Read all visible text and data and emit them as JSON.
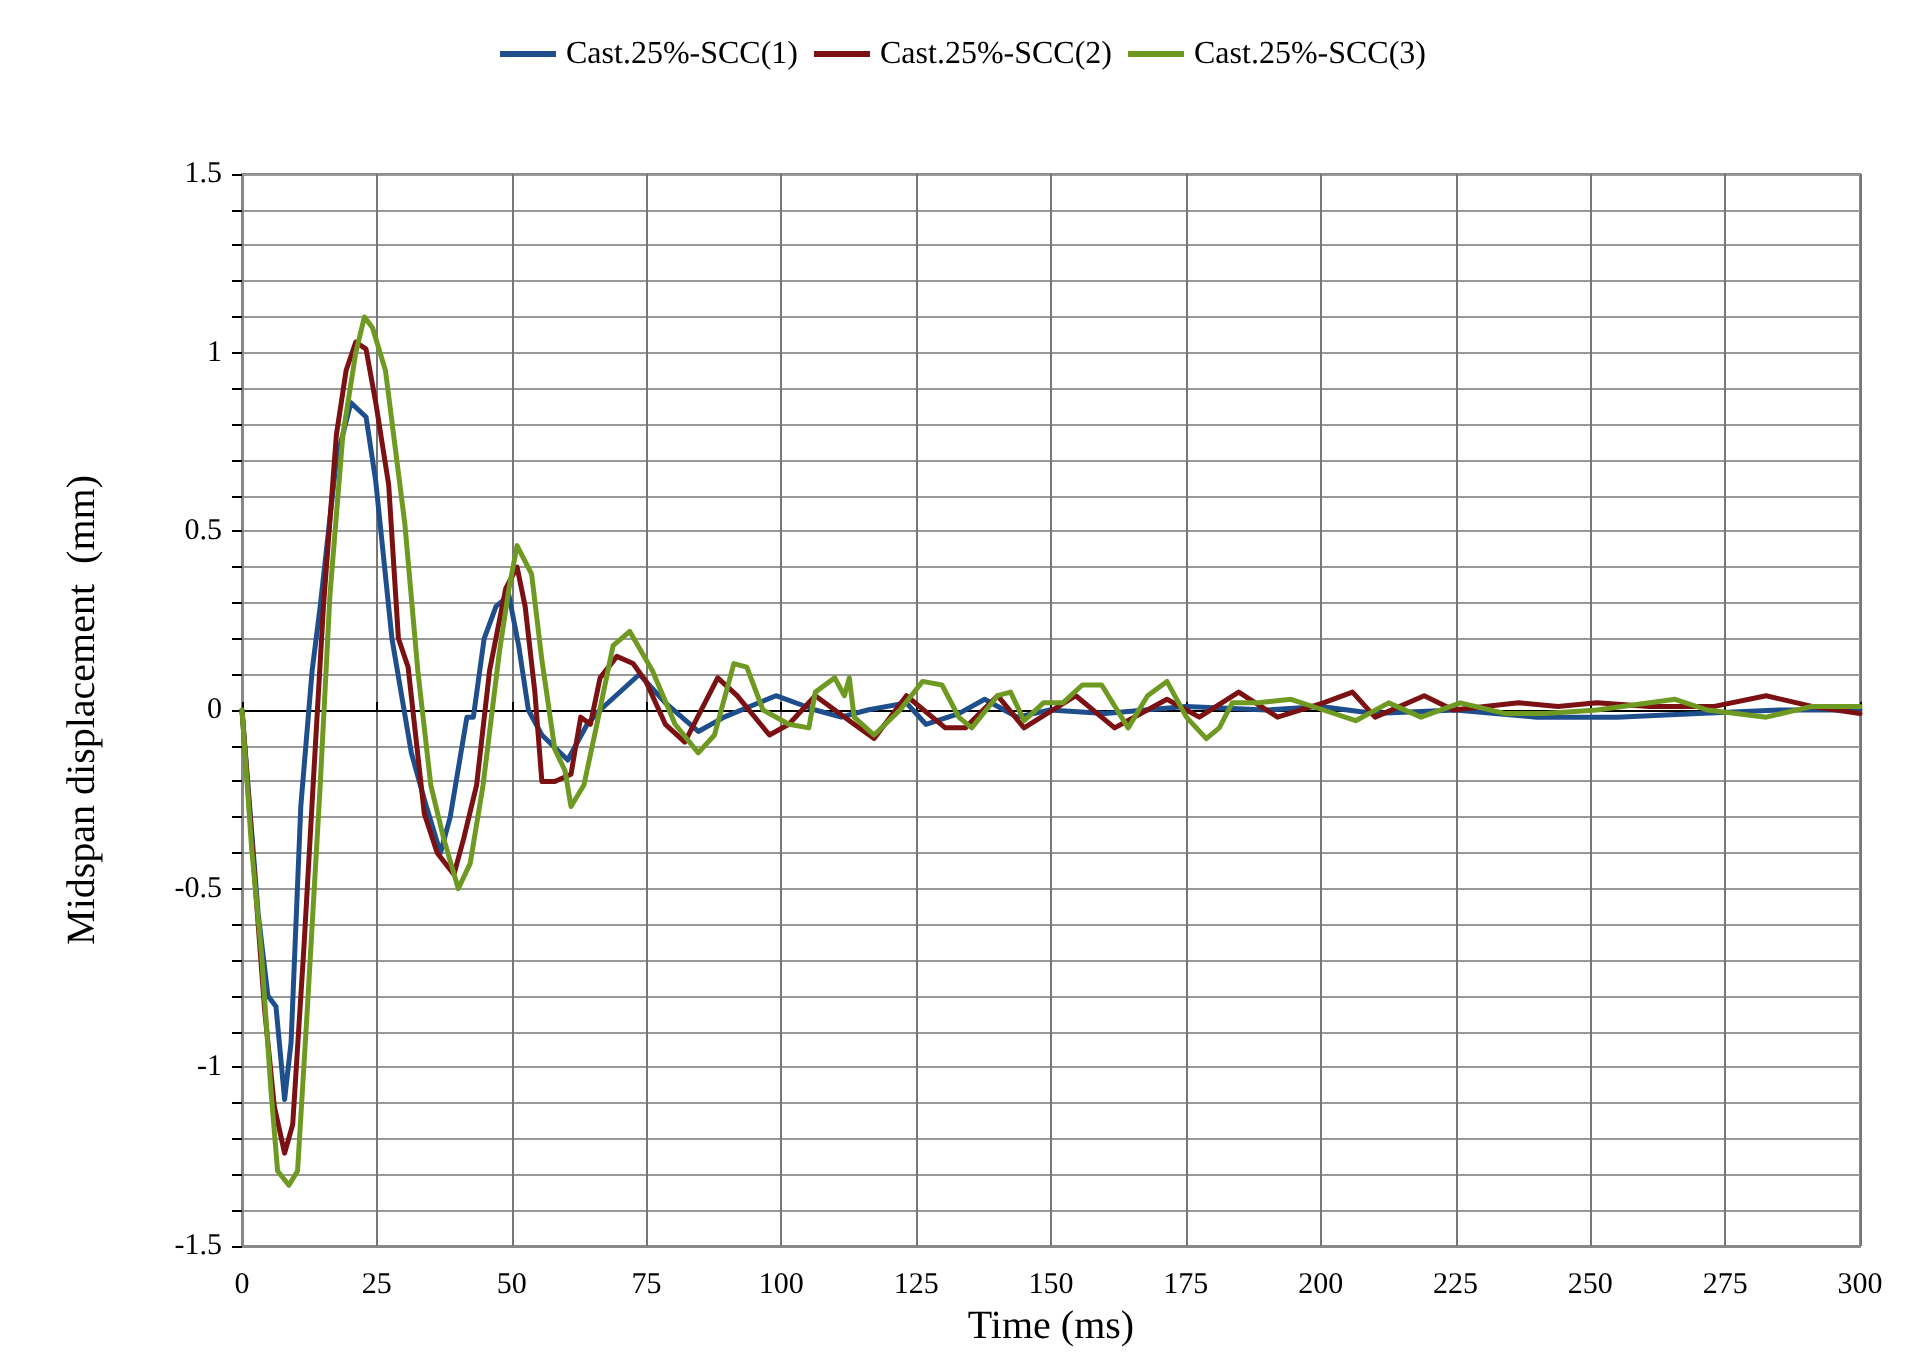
{
  "chart_data": {
    "type": "line",
    "xlabel": "Time (ms)",
    "ylabel": "Midspan displacement  (mm)",
    "xlim": [
      0,
      300
    ],
    "xticks": [
      0,
      25,
      50,
      75,
      100,
      125,
      150,
      175,
      200,
      225,
      250,
      275,
      300
    ],
    "ylim": [
      -1.5,
      1.5
    ],
    "yticks": [
      -1.5,
      {
        "value": -1.4,
        "label": null
      },
      {
        "value": -1.3,
        "label": null
      },
      {
        "value": -1.2,
        "label": null
      },
      {
        "value": -1.1,
        "label": null
      },
      -1,
      {
        "value": -0.9,
        "label": null
      },
      {
        "value": -0.8,
        "label": null
      },
      {
        "value": -0.7,
        "label": null
      },
      {
        "value": -0.6,
        "label": null
      },
      -0.5,
      {
        "value": -0.4,
        "label": null
      },
      {
        "value": -0.3,
        "label": null
      },
      {
        "value": -0.2,
        "label": null
      },
      {
        "value": -0.1,
        "label": null
      },
      0,
      {
        "value": 0.1,
        "label": null
      },
      {
        "value": 0.2,
        "label": null
      },
      {
        "value": 0.3,
        "label": null
      },
      {
        "value": 0.4,
        "label": null
      },
      0.5,
      {
        "value": 0.6,
        "label": null
      },
      {
        "value": 0.7,
        "label": null
      },
      {
        "value": 0.8,
        "label": null
      },
      {
        "value": 0.9,
        "label": null
      },
      1,
      {
        "value": 1.1,
        "label": null
      },
      {
        "value": 1.2,
        "label": null
      },
      {
        "value": 1.3,
        "label": null
      },
      {
        "value": 1.4,
        "label": null
      },
      1.5
    ],
    "grid": true,
    "legend": "top",
    "marker": "none",
    "line_style": "solid",
    "series": [
      {
        "name": "Cast.25%-SCC(1)",
        "color": "#1f4e8c",
        "x": [
          0,
          3,
          4.8,
          6.3,
          7.9,
          9.1,
          10.9,
          13,
          14.5,
          17.5,
          20.2,
          23,
          24.8,
          27.8,
          31.4,
          33.8,
          36.8,
          38.6,
          41.7,
          42.9,
          44.9,
          47.1,
          49.5,
          51.3,
          53.1,
          55.6,
          60.4,
          64,
          66.4,
          73.7,
          78.5,
          84.6,
          89.4,
          99,
          106.3,
          111.1,
          116,
          123.2,
          126.8,
          132.9,
          137.7,
          143.7,
          149.8,
          160,
          175,
          190,
          200,
          210,
          225,
          240,
          255,
          270,
          285,
          300
        ],
        "values": [
          0,
          -0.57,
          -0.8,
          -0.83,
          -1.09,
          -0.93,
          -0.27,
          0.11,
          0.29,
          0.7,
          0.86,
          0.82,
          0.64,
          0.2,
          -0.12,
          -0.25,
          -0.4,
          -0.3,
          -0.02,
          -0.02,
          0.2,
          0.29,
          0.32,
          0.18,
          0,
          -0.07,
          -0.14,
          -0.04,
          0,
          0.1,
          0.02,
          -0.06,
          -0.02,
          0.04,
          0,
          -0.02,
          0,
          0.02,
          -0.04,
          -0.01,
          0.03,
          -0.02,
          0,
          -0.01,
          0.01,
          0,
          0.01,
          -0.01,
          0,
          -0.02,
          -0.02,
          -0.01,
          0,
          0
        ]
      },
      {
        "name": "Cast.25%-SCC(2)",
        "color": "#7b1113",
        "x": [
          0,
          2.4,
          4.2,
          6,
          7.9,
          9.4,
          11.5,
          13.3,
          15.1,
          17.5,
          19.3,
          21.1,
          23,
          24.8,
          27.2,
          29,
          30.8,
          33.8,
          36.2,
          39.3,
          41.1,
          43.5,
          45.9,
          48.9,
          51,
          52.5,
          54.3,
          55.6,
          58,
          61,
          62.8,
          64.6,
          66.4,
          69.5,
          72.5,
          74.9,
          78.5,
          82.1,
          88.2,
          91.8,
          97.8,
          101.4,
          106.3,
          113.5,
          117.2,
          123.2,
          130.4,
          134.1,
          140.1,
          145,
          154.6,
          161.8,
          171.5,
          177.5,
          184.8,
          192,
          200.5,
          205.9,
          210.1,
          219.2,
          224.6,
          236.7,
          244,
          251.2,
          260.9,
          273,
          282.6,
          291.1,
          300
        ],
        "values": [
          0,
          -0.48,
          -0.84,
          -1.11,
          -1.24,
          -1.16,
          -0.66,
          -0.18,
          0.29,
          0.77,
          0.95,
          1.03,
          1.01,
          0.86,
          0.63,
          0.2,
          0.12,
          -0.29,
          -0.4,
          -0.46,
          -0.36,
          -0.21,
          0.11,
          0.34,
          0.4,
          0.29,
          0.05,
          -0.2,
          -0.2,
          -0.18,
          -0.02,
          -0.04,
          0.09,
          0.15,
          0.13,
          0.08,
          -0.04,
          -0.09,
          0.09,
          0.04,
          -0.07,
          -0.04,
          0.04,
          -0.04,
          -0.08,
          0.04,
          -0.05,
          -0.05,
          0.04,
          -0.05,
          0.04,
          -0.05,
          0.03,
          -0.02,
          0.05,
          -0.02,
          0.02,
          0.05,
          -0.02,
          0.04,
          0,
          0.02,
          0.01,
          0.02,
          0.01,
          0.01,
          0.04,
          0.01,
          -0.01
        ]
      },
      {
        "name": "Cast.25%-SCC(3)",
        "color": "#6f9a22",
        "x": [
          0,
          1.8,
          3.6,
          5.4,
          6.6,
          8.7,
          10.3,
          12.1,
          14.5,
          16.3,
          18.7,
          21.1,
          22.7,
          24.2,
          26.6,
          30.2,
          32.6,
          35,
          37.4,
          40.1,
          42.3,
          44.7,
          47.7,
          49.5,
          51,
          53.7,
          55.6,
          58,
          59.9,
          61,
          63.4,
          65.8,
          68.8,
          71.9,
          76.1,
          80.3,
          84.6,
          87.6,
          91.2,
          93.6,
          96.6,
          101.4,
          105.1,
          106.3,
          109.9,
          111.7,
          112.6,
          113.5,
          117.2,
          122,
          126.2,
          129.8,
          132.9,
          135.3,
          140.1,
          142.5,
          145,
          148.6,
          152.2,
          155.8,
          159.4,
          164.3,
          167.9,
          171.5,
          175.1,
          178.8,
          181.2,
          183.6,
          188.4,
          194.5,
          200.5,
          206.5,
          212.6,
          218.6,
          225.9,
          234.3,
          241.5,
          251.2,
          265.7,
          271.7,
          282.6,
          291.1,
          300
        ],
        "values": [
          0,
          -0.39,
          -0.68,
          -1.07,
          -1.29,
          -1.33,
          -1.29,
          -0.84,
          -0.21,
          0.32,
          0.77,
          1,
          1.1,
          1.07,
          0.95,
          0.52,
          0.11,
          -0.21,
          -0.36,
          -0.5,
          -0.43,
          -0.21,
          0.16,
          0.34,
          0.46,
          0.38,
          0.14,
          -0.11,
          -0.17,
          -0.27,
          -0.21,
          -0.04,
          0.18,
          0.22,
          0.11,
          -0.04,
          -0.12,
          -0.07,
          0.13,
          0.12,
          0,
          -0.04,
          -0.05,
          0.05,
          0.09,
          0.04,
          0.09,
          -0.02,
          -0.07,
          0,
          0.08,
          0.07,
          -0.02,
          -0.05,
          0.04,
          0.05,
          -0.03,
          0.02,
          0.02,
          0.07,
          0.07,
          -0.05,
          0.04,
          0.08,
          -0.02,
          -0.08,
          -0.05,
          0.02,
          0.02,
          0.03,
          0,
          -0.03,
          0.02,
          -0.02,
          0.02,
          -0.01,
          -0.01,
          0,
          0.03,
          0,
          -0.02,
          0.01,
          0.01
        ]
      }
    ]
  }
}
